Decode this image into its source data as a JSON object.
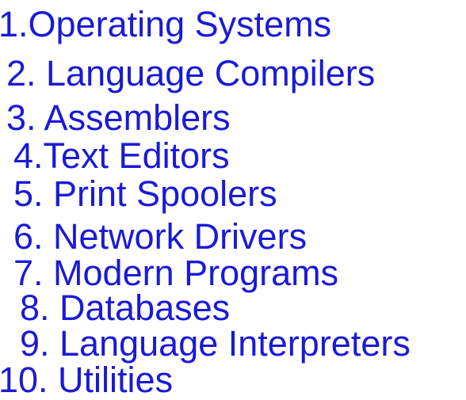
{
  "text_color": "#1a1ad6",
  "items": [
    "1.Operating Systems",
    "2. Language Compilers",
    "3. Assemblers",
    "4.Text Editors",
    "5. Print Spoolers",
    "6. Network Drivers",
    "7. Modern Programs",
    "8. Databases",
    "9. Language Interpreters",
    "10. Utilities"
  ]
}
